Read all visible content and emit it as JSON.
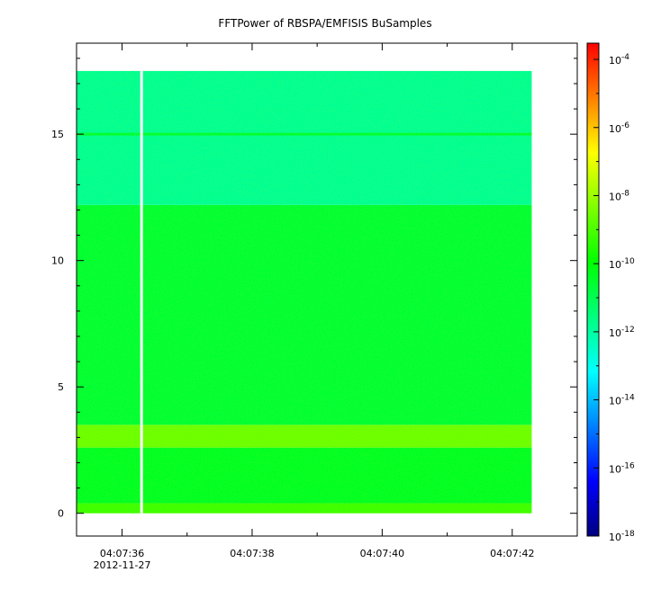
{
  "chart_data": {
    "type": "heatmap",
    "title": "FFTPower of RBSPA/EMFISIS  BuSamples",
    "xlabel": "",
    "ylabel": "",
    "x_range": [
      "04:07:35.3",
      "04:07:43.0"
    ],
    "data_x_range": [
      "04:07:35.3",
      "04:07:42.3"
    ],
    "x_ticks": [
      {
        "label": "04:07:36",
        "sublabel": "2012-11-27"
      },
      {
        "label": "04:07:38",
        "sublabel": ""
      },
      {
        "label": "04:07:40",
        "sublabel": ""
      },
      {
        "label": "04:07:42",
        "sublabel": ""
      }
    ],
    "data_gaps": [
      {
        "time": "04:07:36.3"
      }
    ],
    "ylim": [
      -0.9,
      18.6
    ],
    "y_data_range": [
      0,
      17.5
    ],
    "y_ticks": [
      0,
      5,
      10,
      15
    ],
    "colorbar": {
      "scale": "log",
      "range": [
        1e-18,
        0.0003
      ],
      "ticks": [
        {
          "base": "10",
          "exp": "-4"
        },
        {
          "base": "10",
          "exp": "-6"
        },
        {
          "base": "10",
          "exp": "-8"
        },
        {
          "base": "10",
          "exp": "-10"
        },
        {
          "base": "10",
          "exp": "-12"
        },
        {
          "base": "10",
          "exp": "-14"
        },
        {
          "base": "10",
          "exp": "-16"
        },
        {
          "base": "10",
          "exp": "-18"
        }
      ],
      "colormap": [
        "#00007f",
        "#0000ff",
        "#007fff",
        "#00ffff",
        "#00ff7f",
        "#00ff00",
        "#7fff00",
        "#ffff00",
        "#ff7f00",
        "#ff0000"
      ]
    },
    "bands": [
      {
        "y_range": [
          0,
          0.4
        ],
        "log10_power": -9.2
      },
      {
        "y_range": [
          0.4,
          2.6
        ],
        "log10_power": -10.4
      },
      {
        "y_range": [
          2.6,
          3.5
        ],
        "log10_power": -8.6
      },
      {
        "y_range": [
          3.5,
          12.2
        ],
        "log10_power": -10.6
      },
      {
        "y_range": [
          12.2,
          17.5
        ],
        "log10_power": -11.8
      }
    ],
    "lines": [
      {
        "y": 15.0,
        "log10_power": -10.6
      }
    ]
  }
}
